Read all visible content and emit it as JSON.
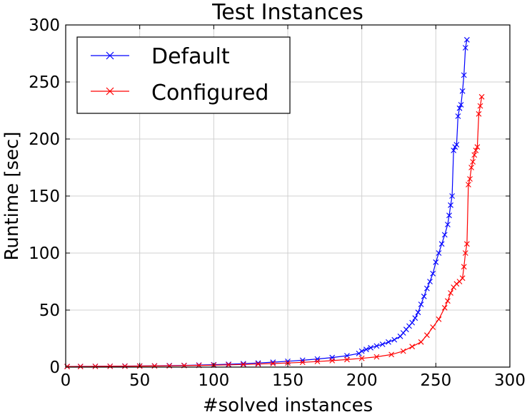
{
  "chart_data": {
    "type": "line",
    "title": "Test Instances",
    "xlabel": "#solved instances",
    "ylabel": "Runtime [sec]",
    "xlim": [
      0,
      300
    ],
    "ylim": [
      0,
      300
    ],
    "xticks": [
      "0",
      "50",
      "100",
      "150",
      "200",
      "250",
      "300"
    ],
    "yticks": [
      "0",
      "50",
      "100",
      "150",
      "200",
      "250",
      "300"
    ],
    "grid": true,
    "legend_position": "top-left",
    "series": [
      {
        "name": "Default",
        "color": "#0000ff",
        "marker": "x",
        "points": [
          [
            1,
            0.5
          ],
          [
            10,
            0.6
          ],
          [
            20,
            0.7
          ],
          [
            30,
            0.8
          ],
          [
            40,
            0.9
          ],
          [
            50,
            1.0
          ],
          [
            60,
            1.1
          ],
          [
            70,
            1.3
          ],
          [
            80,
            1.5
          ],
          [
            90,
            1.8
          ],
          [
            100,
            2.1
          ],
          [
            110,
            2.5
          ],
          [
            120,
            3.0
          ],
          [
            130,
            3.6
          ],
          [
            140,
            4.3
          ],
          [
            150,
            5.1
          ],
          [
            160,
            6.0
          ],
          [
            170,
            7.1
          ],
          [
            180,
            8.4
          ],
          [
            190,
            10.0
          ],
          [
            198,
            12.0
          ],
          [
            200,
            14.0
          ],
          [
            203,
            15.5
          ],
          [
            206,
            17.0
          ],
          [
            210,
            18.5
          ],
          [
            214,
            20.0
          ],
          [
            218,
            22.0
          ],
          [
            222,
            24.0
          ],
          [
            226,
            27.0
          ],
          [
            228,
            30.0
          ],
          [
            230,
            33.0
          ],
          [
            232,
            36.0
          ],
          [
            234,
            39.0
          ],
          [
            236,
            43.0
          ],
          [
            238,
            48.0
          ],
          [
            240,
            55.0
          ],
          [
            242,
            62.0
          ],
          [
            244,
            69.0
          ],
          [
            246,
            75.0
          ],
          [
            248,
            82.0
          ],
          [
            250,
            92.0
          ],
          [
            252,
            100.0
          ],
          [
            254,
            108.0
          ],
          [
            256,
            116.0
          ],
          [
            258,
            125.0
          ],
          [
            259,
            133.0
          ],
          [
            260,
            142.0
          ],
          [
            261,
            150.0
          ],
          [
            262,
            190.0
          ],
          [
            263,
            193.0
          ],
          [
            264,
            195.0
          ],
          [
            265,
            220.0
          ],
          [
            266,
            227.0
          ],
          [
            267,
            230.0
          ],
          [
            268,
            242.0
          ],
          [
            269,
            256.0
          ],
          [
            270,
            280.0
          ],
          [
            271,
            287.0
          ]
        ]
      },
      {
        "name": "Configured",
        "color": "#ff0000",
        "marker": "x",
        "points": [
          [
            1,
            0.5
          ],
          [
            10,
            0.5
          ],
          [
            20,
            0.6
          ],
          [
            30,
            0.7
          ],
          [
            40,
            0.8
          ],
          [
            50,
            0.9
          ],
          [
            60,
            1.0
          ],
          [
            70,
            1.1
          ],
          [
            80,
            1.3
          ],
          [
            90,
            1.5
          ],
          [
            100,
            1.7
          ],
          [
            110,
            2.0
          ],
          [
            120,
            2.3
          ],
          [
            130,
            2.7
          ],
          [
            140,
            3.1
          ],
          [
            150,
            3.6
          ],
          [
            160,
            4.2
          ],
          [
            170,
            4.9
          ],
          [
            180,
            5.7
          ],
          [
            190,
            6.6
          ],
          [
            200,
            7.7
          ],
          [
            210,
            9.0
          ],
          [
            220,
            11.0
          ],
          [
            228,
            14.0
          ],
          [
            234,
            18.0
          ],
          [
            240,
            22.0
          ],
          [
            244,
            28.0
          ],
          [
            248,
            35.0
          ],
          [
            252,
            42.0
          ],
          [
            256,
            52.0
          ],
          [
            258,
            58.0
          ],
          [
            260,
            65.0
          ],
          [
            262,
            70.0
          ],
          [
            264,
            73.0
          ],
          [
            266,
            75.0
          ],
          [
            268,
            78.0
          ],
          [
            269,
            88.0
          ],
          [
            270,
            100.0
          ],
          [
            271,
            108.0
          ],
          [
            272,
            160.0
          ],
          [
            273,
            165.0
          ],
          [
            274,
            175.0
          ],
          [
            275,
            180.0
          ],
          [
            276,
            186.0
          ],
          [
            277,
            190.0
          ],
          [
            278,
            193.0
          ],
          [
            279,
            222.0
          ],
          [
            280,
            229.0
          ],
          [
            281,
            237.0
          ]
        ]
      }
    ]
  }
}
